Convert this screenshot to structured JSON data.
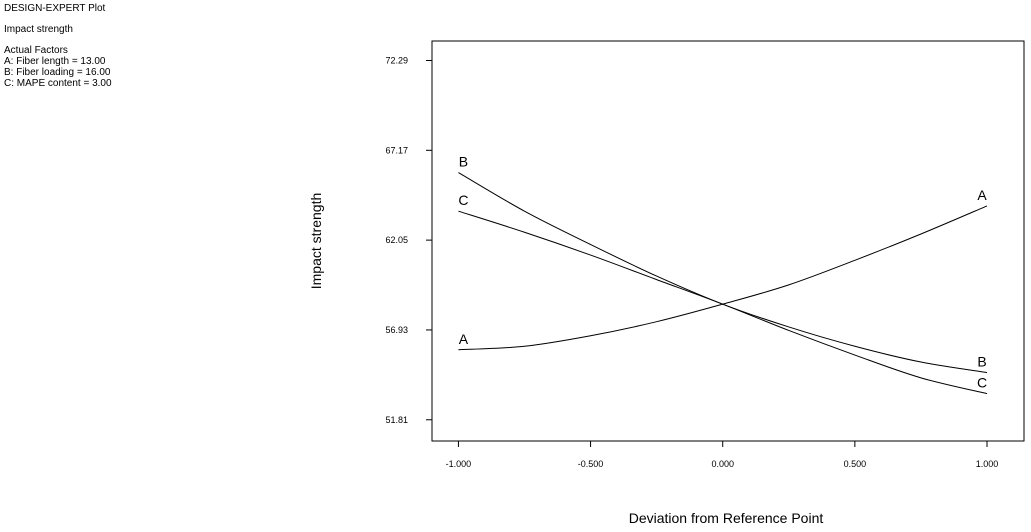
{
  "header": {
    "program": "DESIGN-EXPERT Plot",
    "response": "Impact strength",
    "factors_title": "Actual Factors",
    "factors": [
      "A: Fiber length = 13.00",
      "B: Fiber loading = 16.00",
      "C: MAPE content = 3.00"
    ]
  },
  "chart_data": {
    "type": "line",
    "title": "",
    "xlabel": "Deviation from Reference Point",
    "ylabel": "Impact strength",
    "xlim": [
      -1.1,
      1.14
    ],
    "ylim": [
      50.6,
      73.4
    ],
    "x_ticks": [
      -1.0,
      -0.5,
      0.0,
      0.5,
      1.0
    ],
    "x_tick_labels": [
      "-1.000",
      "-0.500",
      "0.000",
      "0.500",
      "1.000"
    ],
    "y_ticks": [
      51.81,
      56.93,
      62.05,
      67.17,
      72.29
    ],
    "y_tick_labels": [
      "51.81",
      "56.93",
      "62.05",
      "67.17",
      "72.29"
    ],
    "grid": false,
    "legend": "none",
    "series": [
      {
        "name": "A",
        "x": [
          -1.0,
          -0.75,
          -0.5,
          -0.25,
          0.0,
          0.25,
          0.5,
          0.75,
          1.0
        ],
        "y": [
          55.8,
          56.0,
          56.6,
          57.4,
          58.4,
          59.5,
          60.9,
          62.4,
          64.0
        ]
      },
      {
        "name": "B",
        "x": [
          -1.0,
          -0.75,
          -0.5,
          -0.25,
          0.0,
          0.25,
          0.5,
          0.75,
          1.0
        ],
        "y": [
          65.9,
          63.7,
          61.8,
          60.0,
          58.4,
          57.1,
          56.0,
          55.1,
          54.5
        ]
      },
      {
        "name": "C",
        "x": [
          -1.0,
          -0.75,
          -0.5,
          -0.25,
          0.0,
          0.25,
          0.5,
          0.75,
          1.0
        ],
        "y": [
          63.7,
          62.5,
          61.2,
          59.8,
          58.4,
          56.9,
          55.5,
          54.2,
          53.3
        ]
      }
    ]
  }
}
